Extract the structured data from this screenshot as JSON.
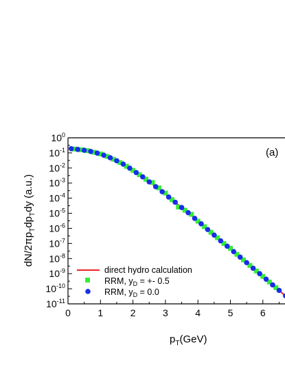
{
  "chart_data": {
    "type": "line",
    "title": "",
    "panel_label": "(a)",
    "xlabel": {
      "main": "p",
      "sub": "T",
      "tail": "(GeV)"
    },
    "ylabel": {
      "p1": "dN/2πp",
      "s1": "T",
      "p2": "dp",
      "s2": "T",
      "p3": "dy (a.u.)"
    },
    "xlim": [
      0,
      6.7
    ],
    "ylim": [
      1e-11,
      1
    ],
    "y_scale": "log",
    "x_ticks": [
      0,
      1,
      2,
      3,
      4,
      5,
      6
    ],
    "y_ticks": [
      {
        "base": "10",
        "exp": "0",
        "value": 1
      },
      {
        "base": "10",
        "exp": "-1",
        "value": 0.1
      },
      {
        "base": "10",
        "exp": "-2",
        "value": 0.01
      },
      {
        "base": "10",
        "exp": "-3",
        "value": 0.001
      },
      {
        "base": "10",
        "exp": "-4",
        "value": 0.0001
      },
      {
        "base": "10",
        "exp": "-5",
        "value": 1e-05
      },
      {
        "base": "10",
        "exp": "-6",
        "value": 1e-06
      },
      {
        "base": "10",
        "exp": "-7",
        "value": 1e-07
      },
      {
        "base": "10",
        "exp": "-8",
        "value": 1e-08
      },
      {
        "base": "10",
        "exp": "-9",
        "value": 1e-09
      },
      {
        "base": "10",
        "exp": "-10",
        "value": 1e-10
      },
      {
        "base": "10",
        "exp": "-11",
        "value": 1e-11
      }
    ],
    "grid": false,
    "legend_position": "bottom-left",
    "series": [
      {
        "name": "direct hydro calculation",
        "kind": "line",
        "color": "#ee2222",
        "x": [
          0.1,
          0.2,
          0.4,
          0.6,
          0.8,
          1.0,
          1.2,
          1.4,
          1.6,
          1.8,
          2.0,
          2.2,
          2.4,
          2.6,
          2.8,
          3.0,
          3.2,
          3.4,
          3.6,
          3.8,
          4.0,
          4.2,
          4.4,
          4.6,
          4.8,
          5.0,
          5.2,
          5.4,
          5.6,
          5.8,
          6.0,
          6.2,
          6.4,
          6.6,
          6.7
        ],
        "y": [
          0.19,
          0.18,
          0.16,
          0.14,
          0.11,
          0.085,
          0.059,
          0.038,
          0.023,
          0.013,
          0.007,
          0.0036,
          0.0018,
          0.00085,
          0.0004,
          0.00018,
          8e-05,
          3.6e-05,
          1.6e-05,
          7e-06,
          3e-06,
          1.3e-06,
          5.5e-07,
          2.4e-07,
          1e-07,
          4.4e-08,
          1.9e-08,
          8.2e-09,
          3.5e-09,
          1.5e-09,
          6.5e-10,
          2.8e-10,
          1.2e-10,
          5e-11,
          3.3e-11
        ]
      },
      {
        "name": "RRM, y",
        "sub": "D",
        "value": " = +- 0.5",
        "kind": "scatter",
        "marker": "square",
        "color": "#33ee33",
        "x": [
          0.2,
          0.4,
          0.6,
          0.8,
          1.0,
          1.2,
          1.4,
          1.6,
          1.8,
          2.0,
          2.2,
          2.4,
          2.6,
          2.8,
          3.0,
          3.2,
          3.4,
          3.6,
          3.8,
          4.0,
          4.2,
          4.4,
          4.6,
          4.8,
          5.0,
          5.2,
          5.4,
          5.6,
          5.8,
          6.0,
          6.2,
          6.4
        ],
        "y": [
          0.18,
          0.16,
          0.14,
          0.11,
          0.085,
          0.059,
          0.038,
          0.023,
          0.013,
          0.007,
          0.0036,
          0.0018,
          0.0011,
          0.00048,
          0.00022,
          8e-05,
          2.6e-05,
          1.6e-05,
          8.5e-06,
          3e-06,
          1.3e-06,
          5.5e-07,
          2.4e-07,
          1e-07,
          4.8e-08,
          1.9e-08,
          8.2e-09,
          3.5e-09,
          1.5e-09,
          6.5e-10,
          2.8e-10,
          1.2e-10
        ]
      },
      {
        "name": "RRM, y",
        "sub": "D",
        "value": " = 0.0",
        "kind": "scatter",
        "marker": "circle",
        "color": "#1a2ee8",
        "x": [
          0.1,
          0.3,
          0.5,
          0.7,
          0.9,
          1.1,
          1.3,
          1.5,
          1.7,
          1.9,
          2.1,
          2.3,
          2.5,
          2.7,
          2.9,
          3.1,
          3.3,
          3.5,
          3.7,
          3.9,
          4.1,
          4.3,
          4.5,
          4.7,
          4.9,
          5.1,
          5.3,
          5.5,
          5.7,
          5.9,
          6.1,
          6.3,
          6.5,
          6.7
        ],
        "y": [
          0.19,
          0.17,
          0.15,
          0.125,
          0.097,
          0.071,
          0.048,
          0.03,
          0.018,
          0.0097,
          0.005,
          0.0026,
          0.0012,
          0.00058,
          0.00027,
          0.00012,
          5.4e-05,
          2.4e-05,
          1.1e-05,
          4.6e-06,
          2e-06,
          8.4e-07,
          3.6e-07,
          1.5e-07,
          6.6e-08,
          2.9e-08,
          1.25e-08,
          5.4e-09,
          2.3e-09,
          1e-09,
          4.3e-10,
          1.8e-10,
          7.8e-11,
          3.4e-11
        ]
      }
    ]
  }
}
